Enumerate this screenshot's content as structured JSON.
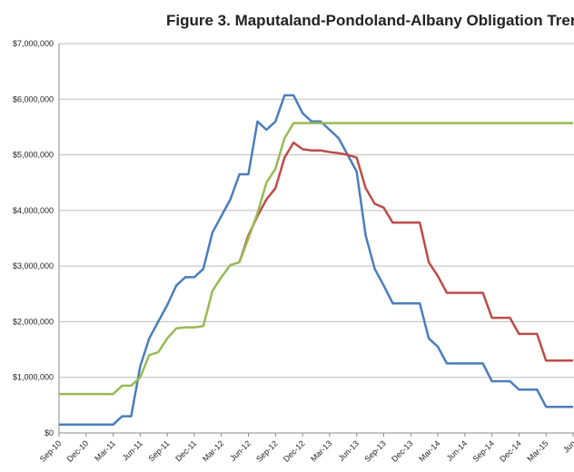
{
  "chart_data": {
    "type": "line",
    "title": "Figure 3.  Maputaland-Pondoland-Albany Obligation Tren",
    "categories": [
      "Sep-10",
      null,
      null,
      "Dec-10",
      null,
      null,
      "Mar-11",
      null,
      null,
      "Jun-11",
      null,
      null,
      "Sep-11",
      null,
      null,
      "Dec-11",
      null,
      null,
      "Mar-12",
      null,
      null,
      "Jun-12",
      null,
      null,
      "Sep-12",
      null,
      null,
      "Dec-12",
      null,
      null,
      "Mar-13",
      null,
      null,
      "Jun-13",
      null,
      null,
      "Sep-13",
      null,
      null,
      "Dec-13",
      null,
      null,
      "Mar-14",
      null,
      null,
      "Jun-14",
      null,
      null,
      "Sep-14",
      null,
      null,
      "Dec-14",
      null,
      null,
      "Mar-15",
      null,
      null,
      "Jun"
    ],
    "series": [
      {
        "color": "#4a7ebb",
        "values": [
          150000,
          150000,
          150000,
          150000,
          150000,
          150000,
          150000,
          300000,
          300000,
          1200000,
          1700000,
          2000000,
          2300000,
          2650000,
          2800000,
          2800000,
          2950000,
          3600000,
          3900000,
          4200000,
          4650000,
          4650000,
          5600000,
          5450000,
          5600000,
          6070000,
          6070000,
          5750000,
          5600000,
          5600000,
          5450000,
          5300000,
          5000000,
          4700000,
          3550000,
          2950000,
          2650000,
          2330000,
          2330000,
          2330000,
          2330000,
          1700000,
          1550000,
          1250000,
          1250000,
          1250000,
          1250000,
          1250000,
          930000,
          930000,
          930000,
          780000,
          780000,
          780000,
          470000,
          470000,
          470000,
          470000
        ]
      },
      {
        "color": "#be4b48",
        "values": [
          null,
          null,
          null,
          null,
          null,
          null,
          null,
          null,
          null,
          null,
          null,
          null,
          null,
          null,
          null,
          null,
          null,
          null,
          null,
          null,
          3070000,
          3550000,
          3900000,
          4200000,
          4400000,
          4950000,
          5220000,
          5100000,
          5080000,
          5080000,
          5050000,
          5030000,
          5000000,
          4950000,
          4400000,
          4120000,
          4050000,
          3780000,
          3780000,
          3780000,
          3780000,
          3070000,
          2820000,
          2520000,
          2520000,
          2520000,
          2520000,
          2520000,
          2070000,
          2070000,
          2070000,
          1780000,
          1780000,
          1780000,
          1300000,
          1300000,
          1300000,
          1300000
        ]
      },
      {
        "color": "#98b954",
        "values": [
          700000,
          700000,
          700000,
          700000,
          700000,
          700000,
          700000,
          850000,
          850000,
          1000000,
          1400000,
          1450000,
          1700000,
          1880000,
          1900000,
          1900000,
          1920000,
          2550000,
          2800000,
          3020000,
          3070000,
          3500000,
          3950000,
          4500000,
          4750000,
          5300000,
          5570000,
          5570000,
          5570000,
          5570000,
          5570000,
          5570000,
          5570000,
          5570000,
          5570000,
          5570000,
          5570000,
          5570000,
          5570000,
          5570000,
          5570000,
          5570000,
          5570000,
          5570000,
          5570000,
          5570000,
          5570000,
          5570000,
          5570000,
          5570000,
          5570000,
          5570000,
          5570000,
          5570000,
          5570000,
          5570000,
          5570000,
          5570000
        ]
      }
    ],
    "ylim": [
      0,
      7000000
    ],
    "yticks": [
      {
        "value": 0,
        "label": "$0"
      },
      {
        "value": 1000000,
        "label": "$1,000,000"
      },
      {
        "value": 2000000,
        "label": "$2,000,000"
      },
      {
        "value": 3000000,
        "label": "$3,000,000"
      },
      {
        "value": 4000000,
        "label": "$4,000,000"
      },
      {
        "value": 5000000,
        "label": "$5,000,000"
      },
      {
        "value": 6000000,
        "label": "$6,000,000"
      },
      {
        "value": 7000000,
        "label": "$7,000,000"
      }
    ],
    "grid": true
  }
}
